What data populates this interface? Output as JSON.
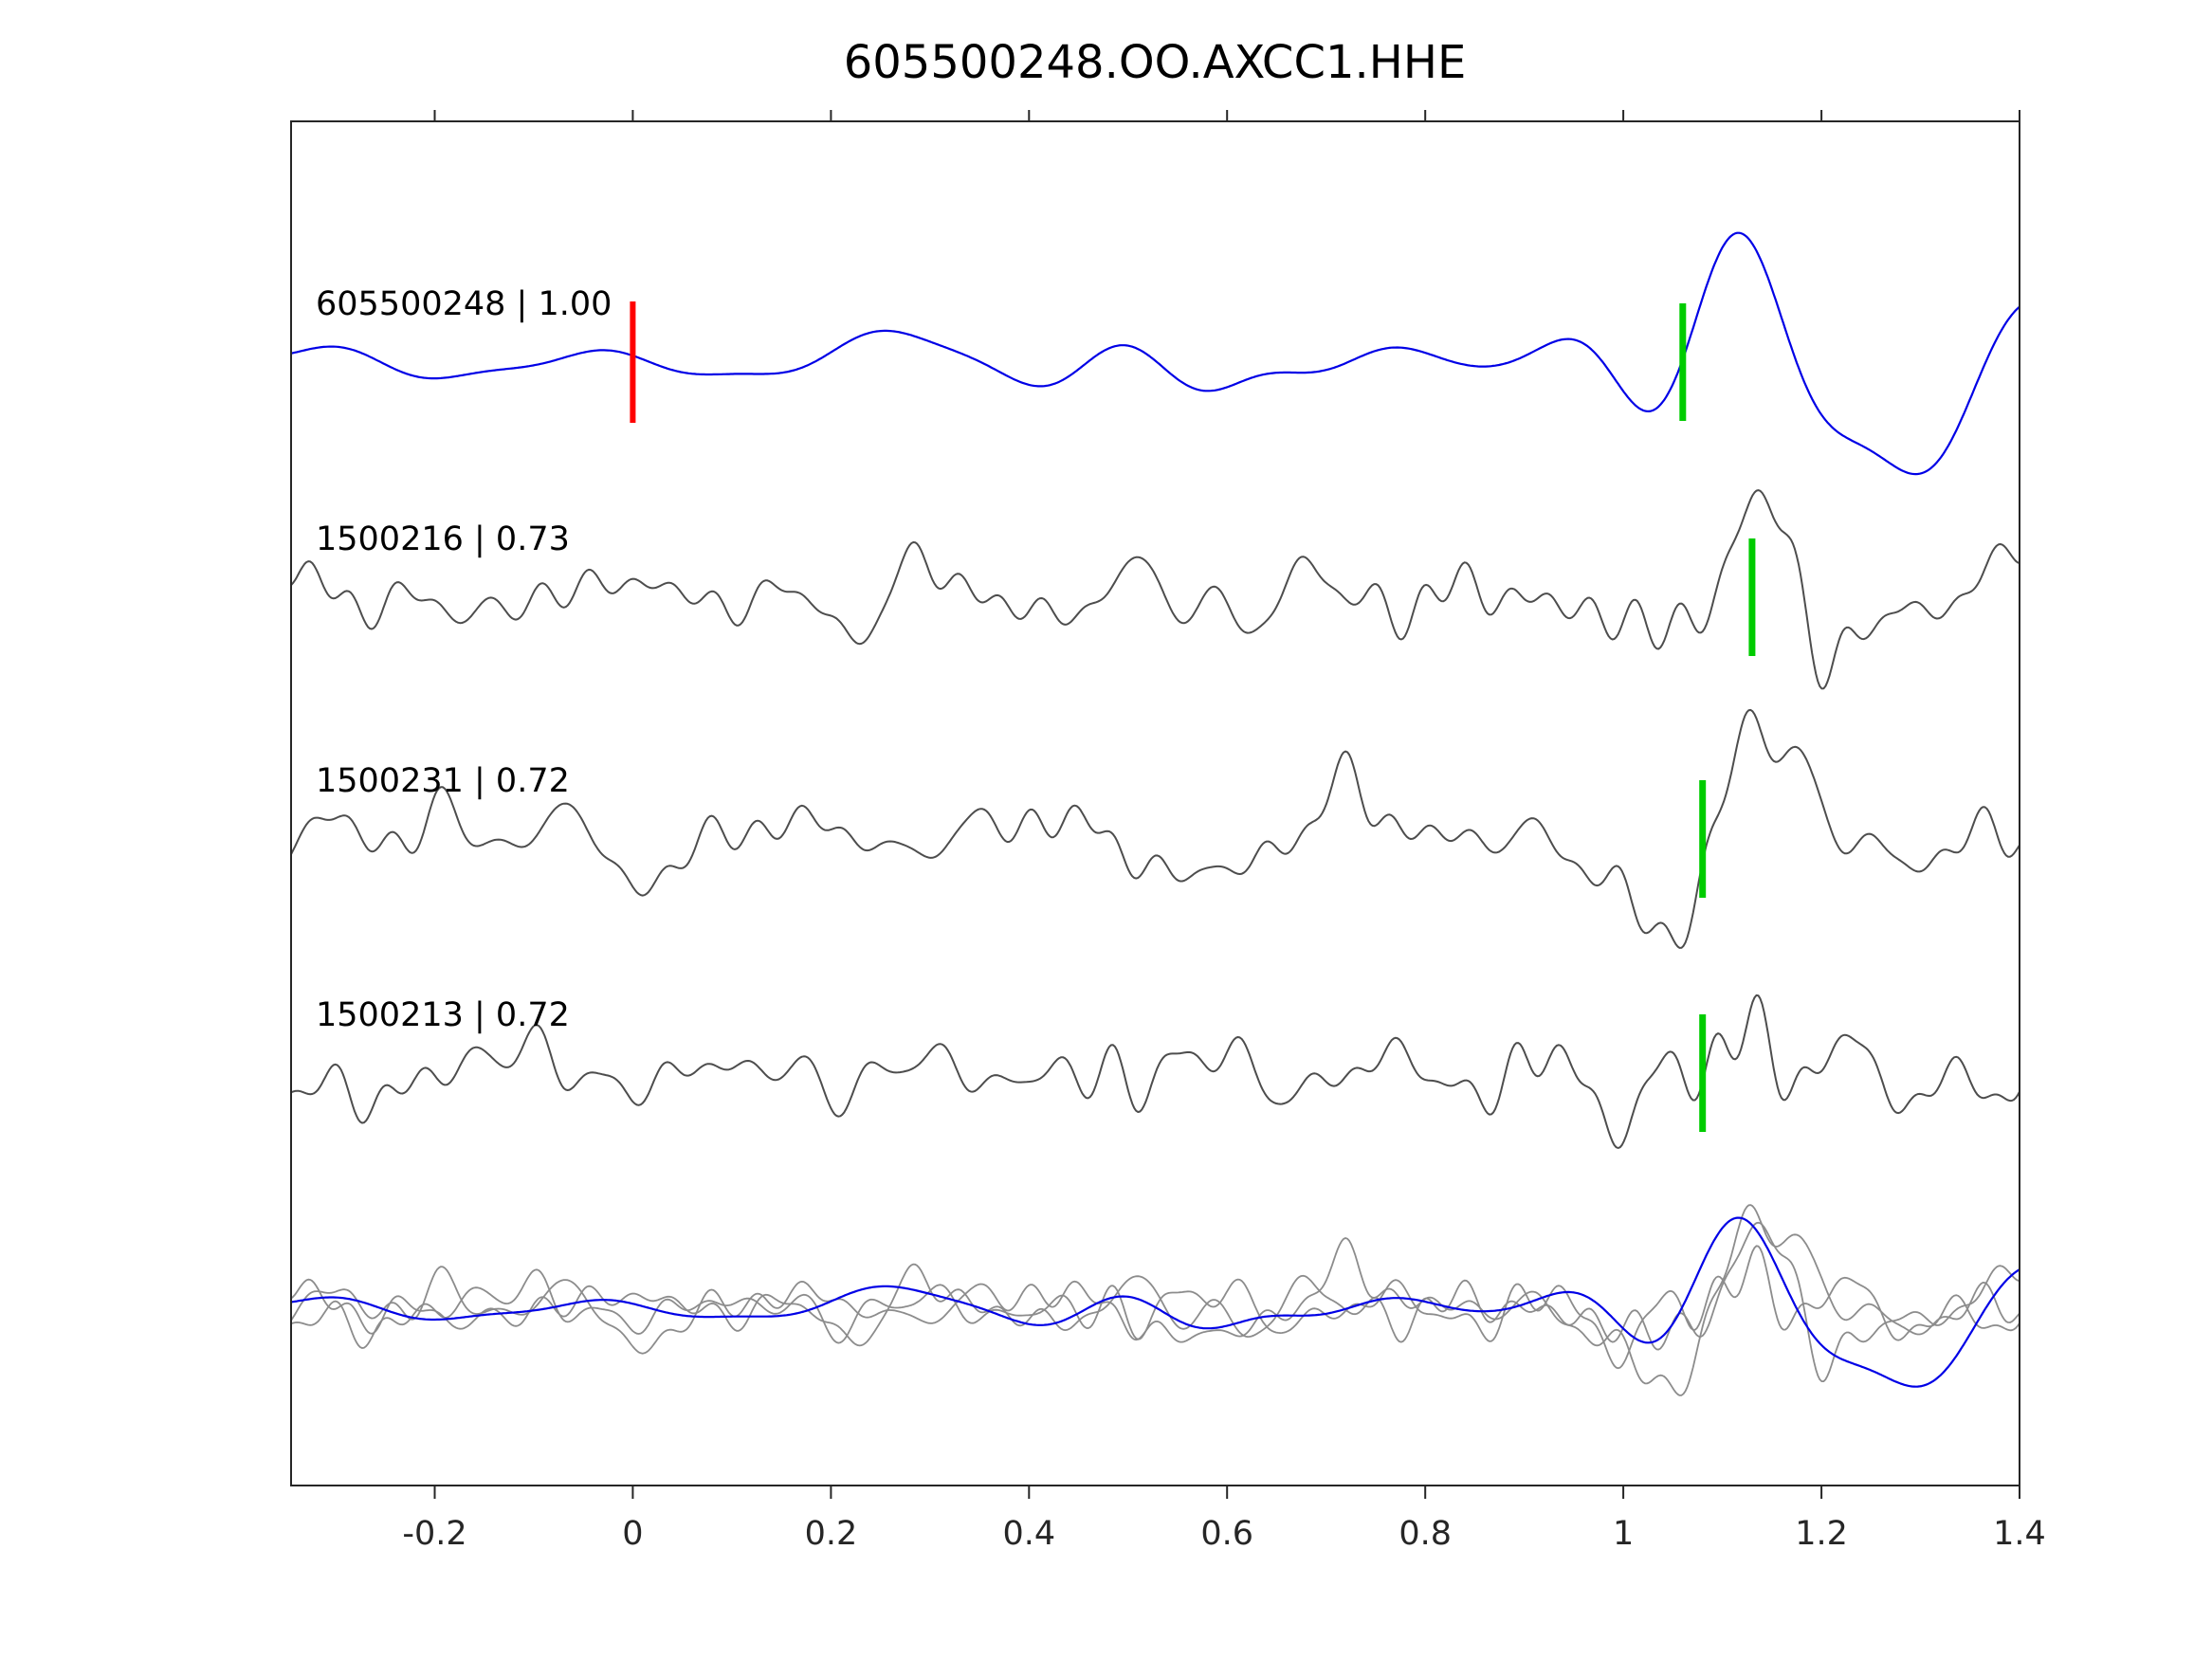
{
  "title": "605500248.OO.AXCC1.HHE",
  "colors": {
    "background": "#ffffff",
    "axis": "#262626",
    "text": "#000000",
    "template_blue": "#0000e6",
    "detection_gray": "#4d4d4d",
    "overlay_gray": "#8c8c8c",
    "pick_red": "#ff0000",
    "pick_green": "#00cc00"
  },
  "chart_data": {
    "type": "line",
    "title": "605500248.OO.AXCC1.HHE",
    "xlabel": "",
    "ylabel": "",
    "grid": false,
    "legend": "none",
    "x_range": [
      -0.345,
      1.4
    ],
    "x_ticks": {
      "values": [
        -0.2,
        0,
        0.2,
        0.4,
        0.6,
        0.8,
        1,
        1.2,
        1.4
      ],
      "labels": [
        "-0.2",
        "0",
        "0.2",
        "0.4",
        "0.6",
        "0.8",
        "1",
        "1.2",
        "1.4"
      ]
    },
    "description": "Template waveform (blue) compared against three detected event waveforms (gray) and an aligned overlay of all traces (bottom row). Vertical bars mark pick times.",
    "traces": [
      {
        "id": "605500248",
        "label": "605500248 | 1.00",
        "event_id": "605500248",
        "correlation": 1.0,
        "role": "template",
        "color_key": "template_blue",
        "picks": [
          {
            "x": 0.0,
            "color_key": "pick_red"
          },
          {
            "x": 1.06,
            "color_key": "pick_green"
          }
        ]
      },
      {
        "id": "1500216",
        "label": "1500216 | 0.73",
        "event_id": "1500216",
        "correlation": 0.73,
        "role": "detection",
        "color_key": "detection_gray",
        "picks": [
          {
            "x": 1.13,
            "color_key": "pick_green"
          }
        ]
      },
      {
        "id": "1500231",
        "label": "1500231 | 0.72",
        "event_id": "1500231",
        "correlation": 0.72,
        "role": "detection",
        "color_key": "detection_gray",
        "picks": [
          {
            "x": 1.08,
            "color_key": "pick_green"
          }
        ]
      },
      {
        "id": "1500213",
        "label": "1500213 | 0.72",
        "event_id": "1500213",
        "correlation": 0.72,
        "role": "detection",
        "color_key": "detection_gray",
        "picks": [
          {
            "x": 1.08,
            "color_key": "pick_green"
          }
        ]
      },
      {
        "id": "overlay",
        "label": "",
        "role": "overlay",
        "color_key": "overlay_gray",
        "picks": []
      }
    ]
  }
}
